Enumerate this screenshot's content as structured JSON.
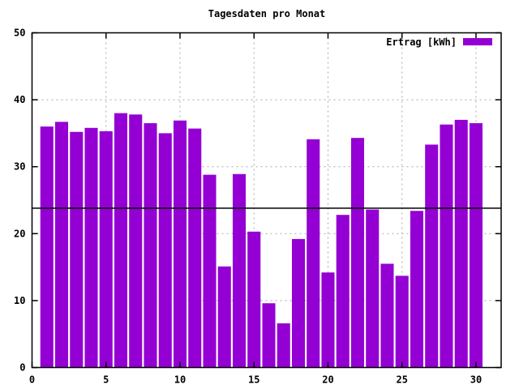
{
  "chart_data": {
    "type": "bar",
    "title": "Tagesdaten pro Monat",
    "xlabel": "",
    "ylabel": "",
    "legend": {
      "label": "Ertrag [kWh]",
      "position": "top-right"
    },
    "categories": [
      1,
      2,
      3,
      4,
      5,
      6,
      7,
      8,
      9,
      10,
      11,
      12,
      13,
      14,
      15,
      16,
      17,
      18,
      19,
      20,
      21,
      22,
      23,
      24,
      25,
      26,
      27,
      28,
      29,
      30
    ],
    "series": [
      {
        "name": "Ertrag [kWh]",
        "values": [
          36.0,
          36.7,
          35.2,
          35.8,
          35.3,
          38.0,
          37.8,
          36.5,
          35.0,
          36.9,
          35.7,
          28.8,
          15.1,
          28.9,
          20.3,
          9.6,
          6.6,
          19.2,
          34.1,
          14.2,
          22.8,
          34.3,
          23.6,
          15.5,
          13.7,
          23.4,
          33.3,
          36.3,
          37.0,
          36.5
        ]
      }
    ],
    "xticks": [
      0,
      5,
      10,
      15,
      20,
      25,
      30
    ],
    "yticks": [
      0,
      10,
      20,
      30,
      40,
      50
    ],
    "xlim": [
      0,
      31.7
    ],
    "ylim": [
      0,
      50
    ],
    "grid": true,
    "reference_line_y": 23.8,
    "colors": {
      "bar": "#9400D3",
      "grid": "#a8a8a8",
      "axis": "#000000",
      "reference_line": "#000000",
      "background": "#ffffff"
    }
  }
}
